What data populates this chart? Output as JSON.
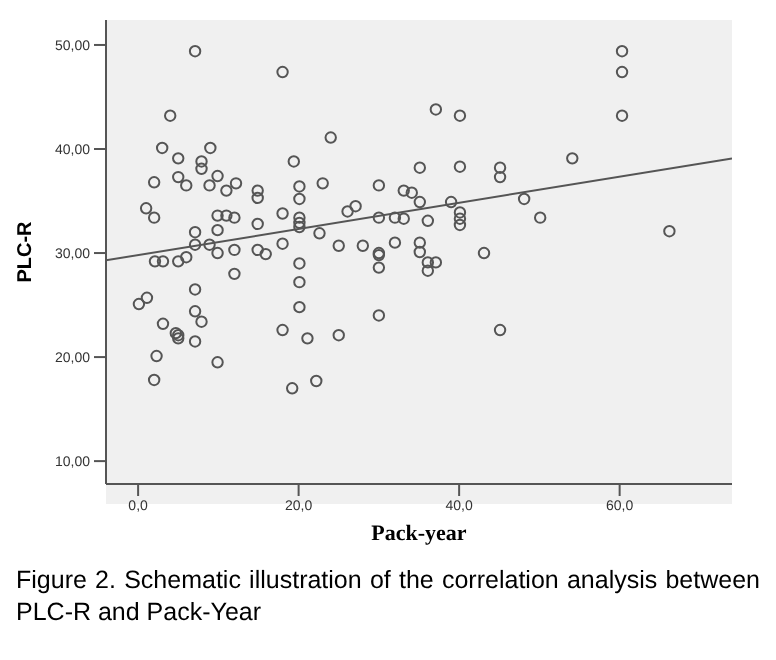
{
  "chart_data": {
    "type": "scatter",
    "xlabel": "Pack-year",
    "ylabel": "PLC-R",
    "xlim": [
      -4,
      74
    ],
    "ylim": [
      7.8,
      52.4
    ],
    "xticks": [
      {
        "value": 0,
        "label": "0,0"
      },
      {
        "value": 20,
        "label": "20,0"
      },
      {
        "value": 40,
        "label": "40,0"
      },
      {
        "value": 60,
        "label": "60,0"
      }
    ],
    "yticks": [
      {
        "value": 10,
        "label": "10,00"
      },
      {
        "value": 20,
        "label": "20,00"
      },
      {
        "value": 30,
        "label": "30,00"
      },
      {
        "value": 40,
        "label": "40,00"
      },
      {
        "value": 50,
        "label": "50,00"
      }
    ],
    "grid": false,
    "series": [
      {
        "marker": "circle",
        "color": "#555555",
        "x": [
          7.1,
          18.0,
          4.0,
          3.0,
          9.0,
          5.0,
          7.9,
          7.9,
          19.4,
          24.0,
          2.0,
          5.0,
          6.0,
          9.9,
          8.9,
          12.2,
          11.0,
          14.9,
          14.9,
          20.1,
          20.1,
          23.0,
          30.0,
          1.0,
          2.0,
          9.9,
          11.0,
          12.0,
          18.0,
          20.1,
          20.1,
          20.1,
          26.1,
          27.1,
          30.0,
          7.1,
          9.9,
          14.9,
          7.1,
          12.0,
          9.9,
          22.6,
          18.0,
          25.0,
          28.0,
          30.0,
          30.0,
          14.9,
          15.9,
          8.9,
          6.0,
          2.1,
          3.1,
          5.0,
          12.0,
          20.1,
          30.0,
          20.1,
          0.1,
          1.1,
          7.1,
          7.1,
          7.9,
          20.1,
          3.1,
          4.7,
          5.0,
          5.0,
          7.1,
          18.0,
          21.1,
          25.0,
          30.0,
          2.3,
          9.9,
          2.0,
          19.2,
          22.2,
          60.3,
          60.3,
          60.3,
          37.1,
          40.1,
          54.1,
          35.1,
          40.1,
          45.1,
          45.1,
          33.1,
          34.1,
          35.1,
          39.0,
          48.1,
          32.0,
          33.1,
          40.1,
          40.1,
          40.1,
          36.1,
          50.1,
          66.2,
          32.0,
          35.1,
          35.1,
          36.1,
          37.1,
          43.1,
          36.1,
          45.1
        ],
        "values": [
          49.4,
          47.4,
          43.2,
          40.1,
          40.1,
          39.1,
          38.8,
          38.1,
          38.8,
          41.1,
          36.8,
          37.3,
          36.5,
          37.4,
          36.5,
          36.7,
          36.0,
          36.0,
          35.3,
          36.4,
          35.2,
          36.7,
          36.5,
          34.3,
          33.4,
          33.6,
          33.6,
          33.4,
          33.8,
          33.4,
          32.9,
          32.5,
          34.0,
          34.5,
          33.4,
          32.0,
          32.2,
          32.8,
          30.8,
          30.3,
          30.0,
          31.9,
          30.9,
          30.7,
          30.7,
          30.0,
          29.8,
          30.3,
          29.9,
          30.8,
          29.6,
          29.2,
          29.2,
          29.2,
          28.0,
          29.0,
          28.6,
          27.2,
          25.1,
          25.7,
          26.5,
          24.4,
          23.4,
          24.8,
          23.2,
          22.3,
          22.1,
          21.8,
          21.5,
          22.6,
          21.8,
          22.1,
          24.0,
          20.1,
          19.5,
          17.8,
          17.0,
          17.7,
          49.4,
          47.4,
          43.2,
          43.8,
          43.2,
          39.1,
          38.2,
          38.3,
          38.2,
          37.3,
          36.0,
          35.8,
          34.9,
          34.9,
          35.2,
          33.4,
          33.3,
          33.9,
          33.3,
          32.7,
          33.1,
          33.4,
          32.1,
          31.0,
          31.0,
          30.1,
          29.1,
          29.1,
          30.0,
          28.3,
          22.6
        ]
      },
      {
        "type": "line",
        "color": "#555555",
        "x": [
          -4,
          74
        ],
        "values": [
          29.3,
          39.1
        ]
      }
    ],
    "annotations": [
      "Figure 2. Schematic illustration of the correlation analysis between PLC-R and Pack-Year"
    ]
  }
}
